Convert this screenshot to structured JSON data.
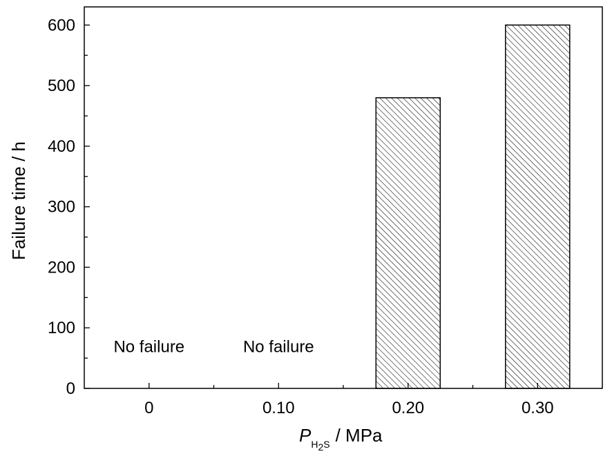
{
  "chart_data": {
    "type": "bar",
    "categories": [
      "0",
      "0.10",
      "0.20",
      "0.30"
    ],
    "values": [
      0,
      0,
      480,
      600
    ],
    "ylabel": "Failure time / h",
    "xlabel": {
      "symbol": "P",
      "subscript_main": "H",
      "subscript_index": "2",
      "subscript_end": "S",
      "unit": "/ MPa"
    },
    "ylim": [
      0,
      630
    ],
    "yticks": [
      0,
      100,
      200,
      300,
      400,
      500,
      600
    ],
    "yticklabels": [
      "0",
      "100",
      "200",
      "300",
      "400",
      "500",
      "600"
    ],
    "bar_fill": "hatched",
    "annotations": [
      {
        "category": "0",
        "text": "No failure"
      },
      {
        "category": "0.10",
        "text": "No failure"
      }
    ],
    "grid": false,
    "legend": "none"
  }
}
